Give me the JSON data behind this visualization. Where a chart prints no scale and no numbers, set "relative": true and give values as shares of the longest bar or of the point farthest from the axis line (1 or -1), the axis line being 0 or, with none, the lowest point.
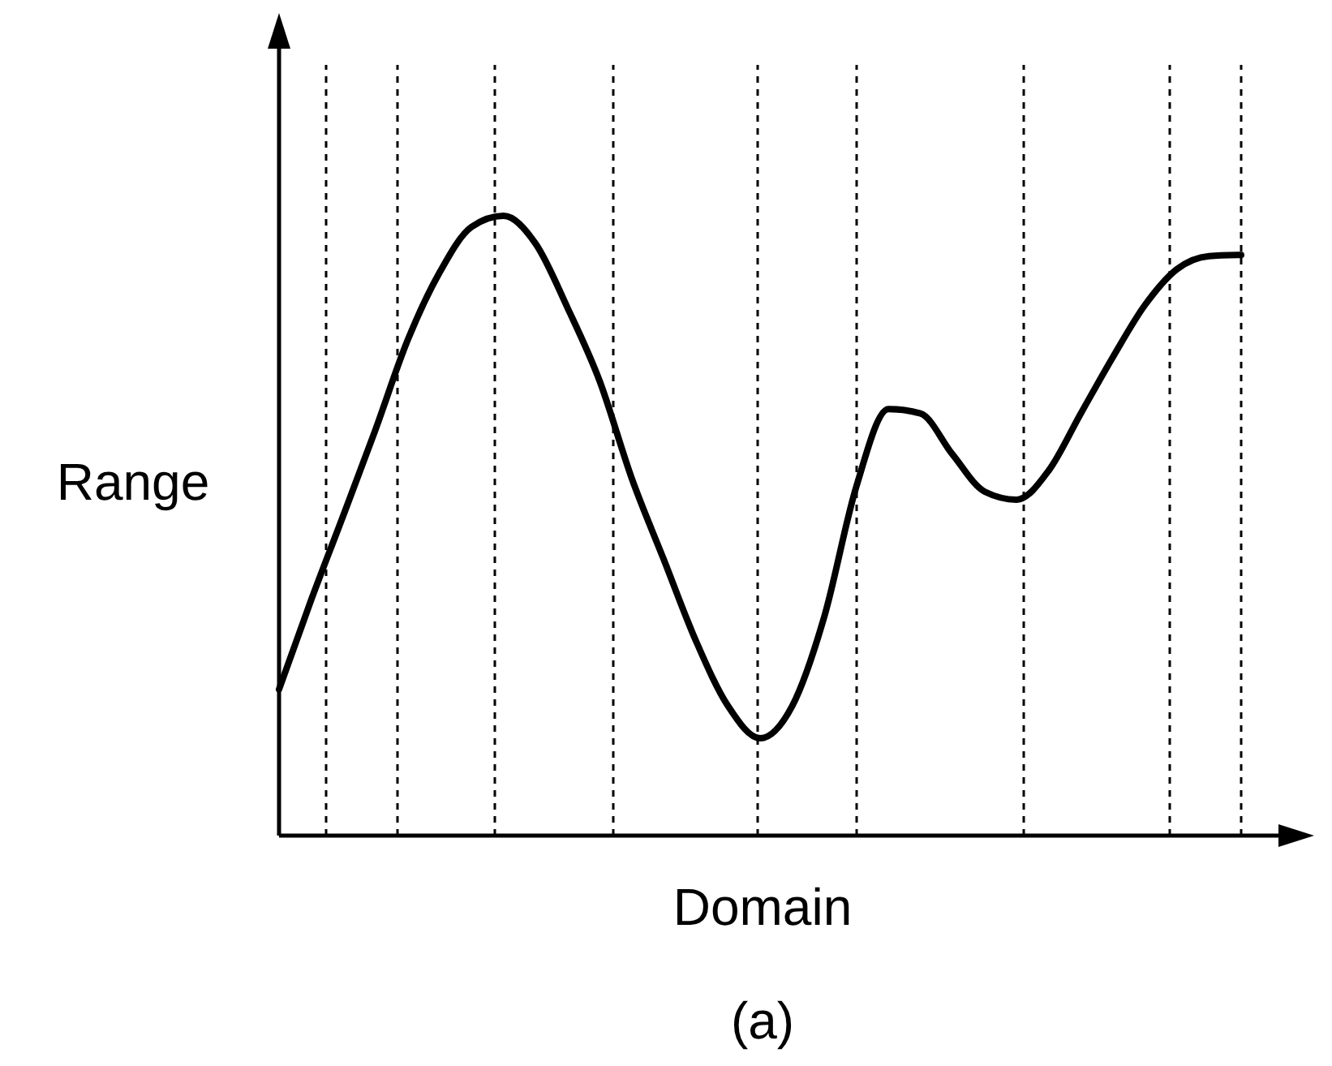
{
  "chart_data": {
    "type": "line",
    "relative": true,
    "xlabel": "Domain",
    "ylabel": "Range",
    "annotations": [
      "(a)"
    ],
    "categories": [
      null,
      null,
      null,
      null,
      null,
      null,
      null,
      null,
      null,
      null,
      null,
      null,
      null,
      null,
      null,
      null,
      null,
      null,
      null,
      null,
      null,
      null,
      null,
      null,
      null,
      null,
      null,
      null,
      null,
      null,
      null
    ],
    "series": [
      {
        "color": "#000000",
        "values": [
          0.236,
          0.38,
          0.516,
          0.654,
          0.798,
          0.908,
          0.982,
          1,
          0.955,
          0.851,
          0.733,
          0.576,
          0.445,
          0.314,
          0.209,
          0.157,
          0.209,
          0.353,
          0.563,
          0.688,
          0.681,
          0.615,
          0.555,
          0.542,
          0.589,
          0.681,
          0.772,
          0.856,
          0.914,
          0.935,
          0.937
        ]
      }
    ],
    "grid": "x",
    "marker": "none",
    "line_style": "solid"
  }
}
